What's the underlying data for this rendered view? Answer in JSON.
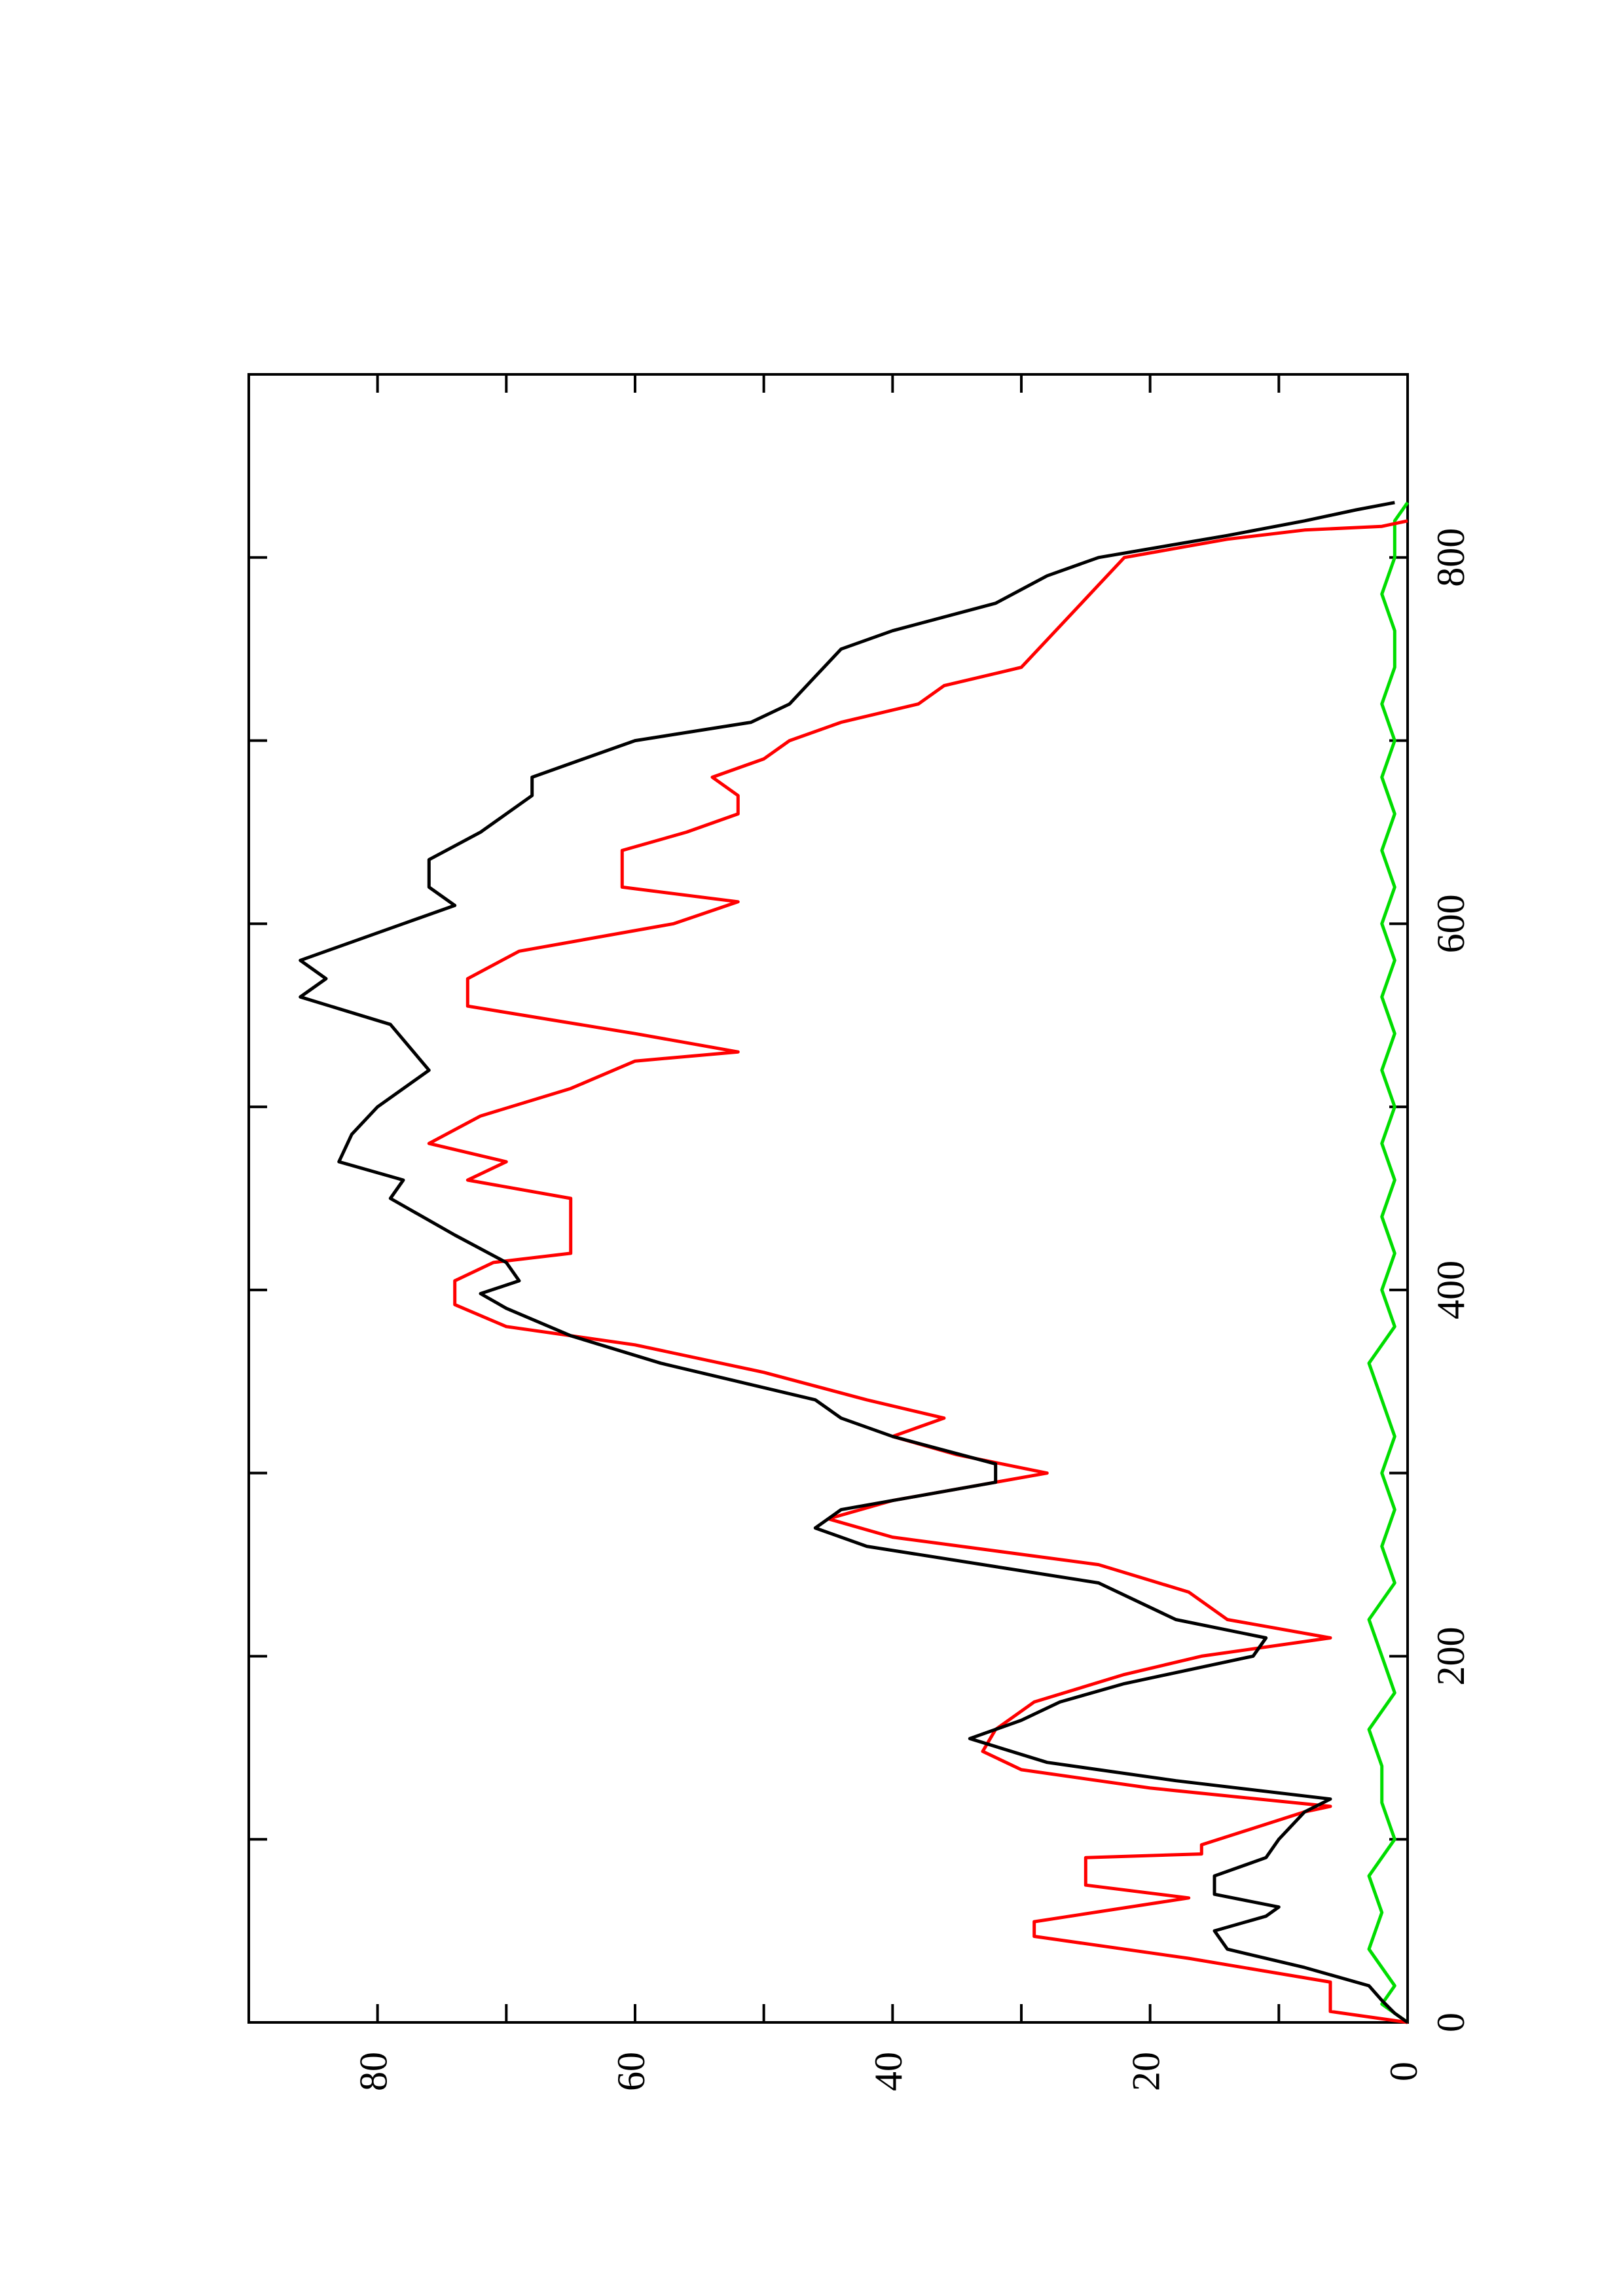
{
  "chart_data": {
    "type": "line",
    "title": "",
    "xlabel": "",
    "ylabel": "",
    "orientation": "rotated 90° counter-clockwise (x axis runs vertically, y axis horizontally)",
    "xlim": [
      0,
      900
    ],
    "ylim": [
      0,
      90
    ],
    "x_ticks": [
      0,
      200,
      400,
      600,
      800
    ],
    "y_ticks": [
      0,
      20,
      40,
      60,
      80
    ],
    "grid": false,
    "legend": "none",
    "series": [
      {
        "color": "#000000",
        "points": [
          [
            0,
            0
          ],
          [
            5,
            1
          ],
          [
            12,
            2
          ],
          [
            20,
            3
          ],
          [
            30,
            8
          ],
          [
            40,
            14
          ],
          [
            50,
            15
          ],
          [
            58,
            11
          ],
          [
            63,
            10
          ],
          [
            70,
            15
          ],
          [
            80,
            15
          ],
          [
            90,
            11
          ],
          [
            100,
            10
          ],
          [
            115,
            8
          ],
          [
            122,
            6
          ],
          [
            132,
            18
          ],
          [
            142,
            28
          ],
          [
            155,
            34
          ],
          [
            165,
            30
          ],
          [
            175,
            27
          ],
          [
            185,
            22
          ],
          [
            200,
            12
          ],
          [
            210,
            11
          ],
          [
            220,
            18
          ],
          [
            240,
            24
          ],
          [
            260,
            42
          ],
          [
            270,
            46
          ],
          [
            280,
            44
          ],
          [
            295,
            32
          ],
          [
            305,
            32
          ],
          [
            320,
            40
          ],
          [
            330,
            44
          ],
          [
            340,
            46
          ],
          [
            350,
            52
          ],
          [
            360,
            58
          ],
          [
            375,
            65
          ],
          [
            390,
            70
          ],
          [
            398,
            72
          ],
          [
            405,
            69
          ],
          [
            415,
            70
          ],
          [
            430,
            74
          ],
          [
            450,
            79
          ],
          [
            460,
            78
          ],
          [
            470,
            83
          ],
          [
            485,
            82
          ],
          [
            500,
            80
          ],
          [
            520,
            76
          ],
          [
            545,
            79
          ],
          [
            560,
            86
          ],
          [
            570,
            84
          ],
          [
            580,
            86
          ],
          [
            600,
            78
          ],
          [
            610,
            74
          ],
          [
            620,
            76
          ],
          [
            635,
            76
          ],
          [
            650,
            72
          ],
          [
            660,
            70
          ],
          [
            670,
            68
          ],
          [
            680,
            68
          ],
          [
            690,
            64
          ],
          [
            700,
            60
          ],
          [
            710,
            51
          ],
          [
            720,
            48
          ],
          [
            735,
            46
          ],
          [
            750,
            44
          ],
          [
            760,
            40
          ],
          [
            775,
            32
          ],
          [
            790,
            28
          ],
          [
            800,
            24
          ],
          [
            812,
            14
          ],
          [
            820,
            8
          ],
          [
            826,
            4
          ],
          [
            830,
            1
          ]
        ]
      },
      {
        "color": "#ff0000",
        "points": [
          [
            0,
            0
          ],
          [
            6,
            6
          ],
          [
            22,
            6
          ],
          [
            35,
            17
          ],
          [
            47,
            29
          ],
          [
            55,
            29
          ],
          [
            68,
            17
          ],
          [
            75,
            25
          ],
          [
            90,
            25
          ],
          [
            92,
            16
          ],
          [
            97,
            16
          ],
          [
            115,
            8
          ],
          [
            118,
            6
          ],
          [
            128,
            20
          ],
          [
            138,
            30
          ],
          [
            148,
            33
          ],
          [
            160,
            32
          ],
          [
            175,
            29
          ],
          [
            190,
            22
          ],
          [
            200,
            16
          ],
          [
            210,
            6
          ],
          [
            220,
            14
          ],
          [
            235,
            17
          ],
          [
            250,
            24
          ],
          [
            265,
            40
          ],
          [
            275,
            45
          ],
          [
            285,
            40
          ],
          [
            300,
            28
          ],
          [
            310,
            35
          ],
          [
            320,
            40
          ],
          [
            330,
            36
          ],
          [
            340,
            42
          ],
          [
            355,
            50
          ],
          [
            370,
            60
          ],
          [
            380,
            70
          ],
          [
            392,
            74
          ],
          [
            405,
            74
          ],
          [
            415,
            71
          ],
          [
            420,
            65
          ],
          [
            440,
            65
          ],
          [
            450,
            65
          ],
          [
            460,
            73
          ],
          [
            470,
            70
          ],
          [
            480,
            76
          ],
          [
            495,
            72
          ],
          [
            510,
            65
          ],
          [
            525,
            60
          ],
          [
            530,
            52
          ],
          [
            540,
            60
          ],
          [
            555,
            73
          ],
          [
            570,
            73
          ],
          [
            585,
            69
          ],
          [
            600,
            57
          ],
          [
            612,
            52
          ],
          [
            620,
            61
          ],
          [
            640,
            61
          ],
          [
            650,
            56
          ],
          [
            660,
            52
          ],
          [
            670,
            52
          ],
          [
            680,
            54
          ],
          [
            690,
            50
          ],
          [
            700,
            48
          ],
          [
            710,
            44
          ],
          [
            720,
            38
          ],
          [
            730,
            36
          ],
          [
            740,
            30
          ],
          [
            755,
            28
          ],
          [
            770,
            26
          ],
          [
            785,
            24
          ],
          [
            800,
            22
          ],
          [
            810,
            14
          ],
          [
            815,
            8
          ],
          [
            817,
            2
          ],
          [
            820,
            0
          ]
        ]
      },
      {
        "color": "#00dd00",
        "points": [
          [
            0,
            0
          ],
          [
            10,
            2
          ],
          [
            20,
            1
          ],
          [
            40,
            3
          ],
          [
            60,
            2
          ],
          [
            80,
            3
          ],
          [
            100,
            1
          ],
          [
            120,
            2
          ],
          [
            140,
            2
          ],
          [
            160,
            3
          ],
          [
            180,
            1
          ],
          [
            200,
            2
          ],
          [
            220,
            3
          ],
          [
            240,
            1
          ],
          [
            260,
            2
          ],
          [
            280,
            1
          ],
          [
            300,
            2
          ],
          [
            320,
            1
          ],
          [
            340,
            2
          ],
          [
            360,
            3
          ],
          [
            380,
            1
          ],
          [
            400,
            2
          ],
          [
            420,
            1
          ],
          [
            440,
            2
          ],
          [
            460,
            1
          ],
          [
            480,
            2
          ],
          [
            500,
            1
          ],
          [
            520,
            2
          ],
          [
            540,
            1
          ],
          [
            560,
            2
          ],
          [
            580,
            1
          ],
          [
            600,
            2
          ],
          [
            620,
            1
          ],
          [
            640,
            2
          ],
          [
            660,
            1
          ],
          [
            680,
            2
          ],
          [
            700,
            1
          ],
          [
            720,
            2
          ],
          [
            740,
            1
          ],
          [
            760,
            1
          ],
          [
            780,
            2
          ],
          [
            800,
            1
          ],
          [
            820,
            1
          ],
          [
            830,
            0
          ]
        ]
      }
    ]
  }
}
